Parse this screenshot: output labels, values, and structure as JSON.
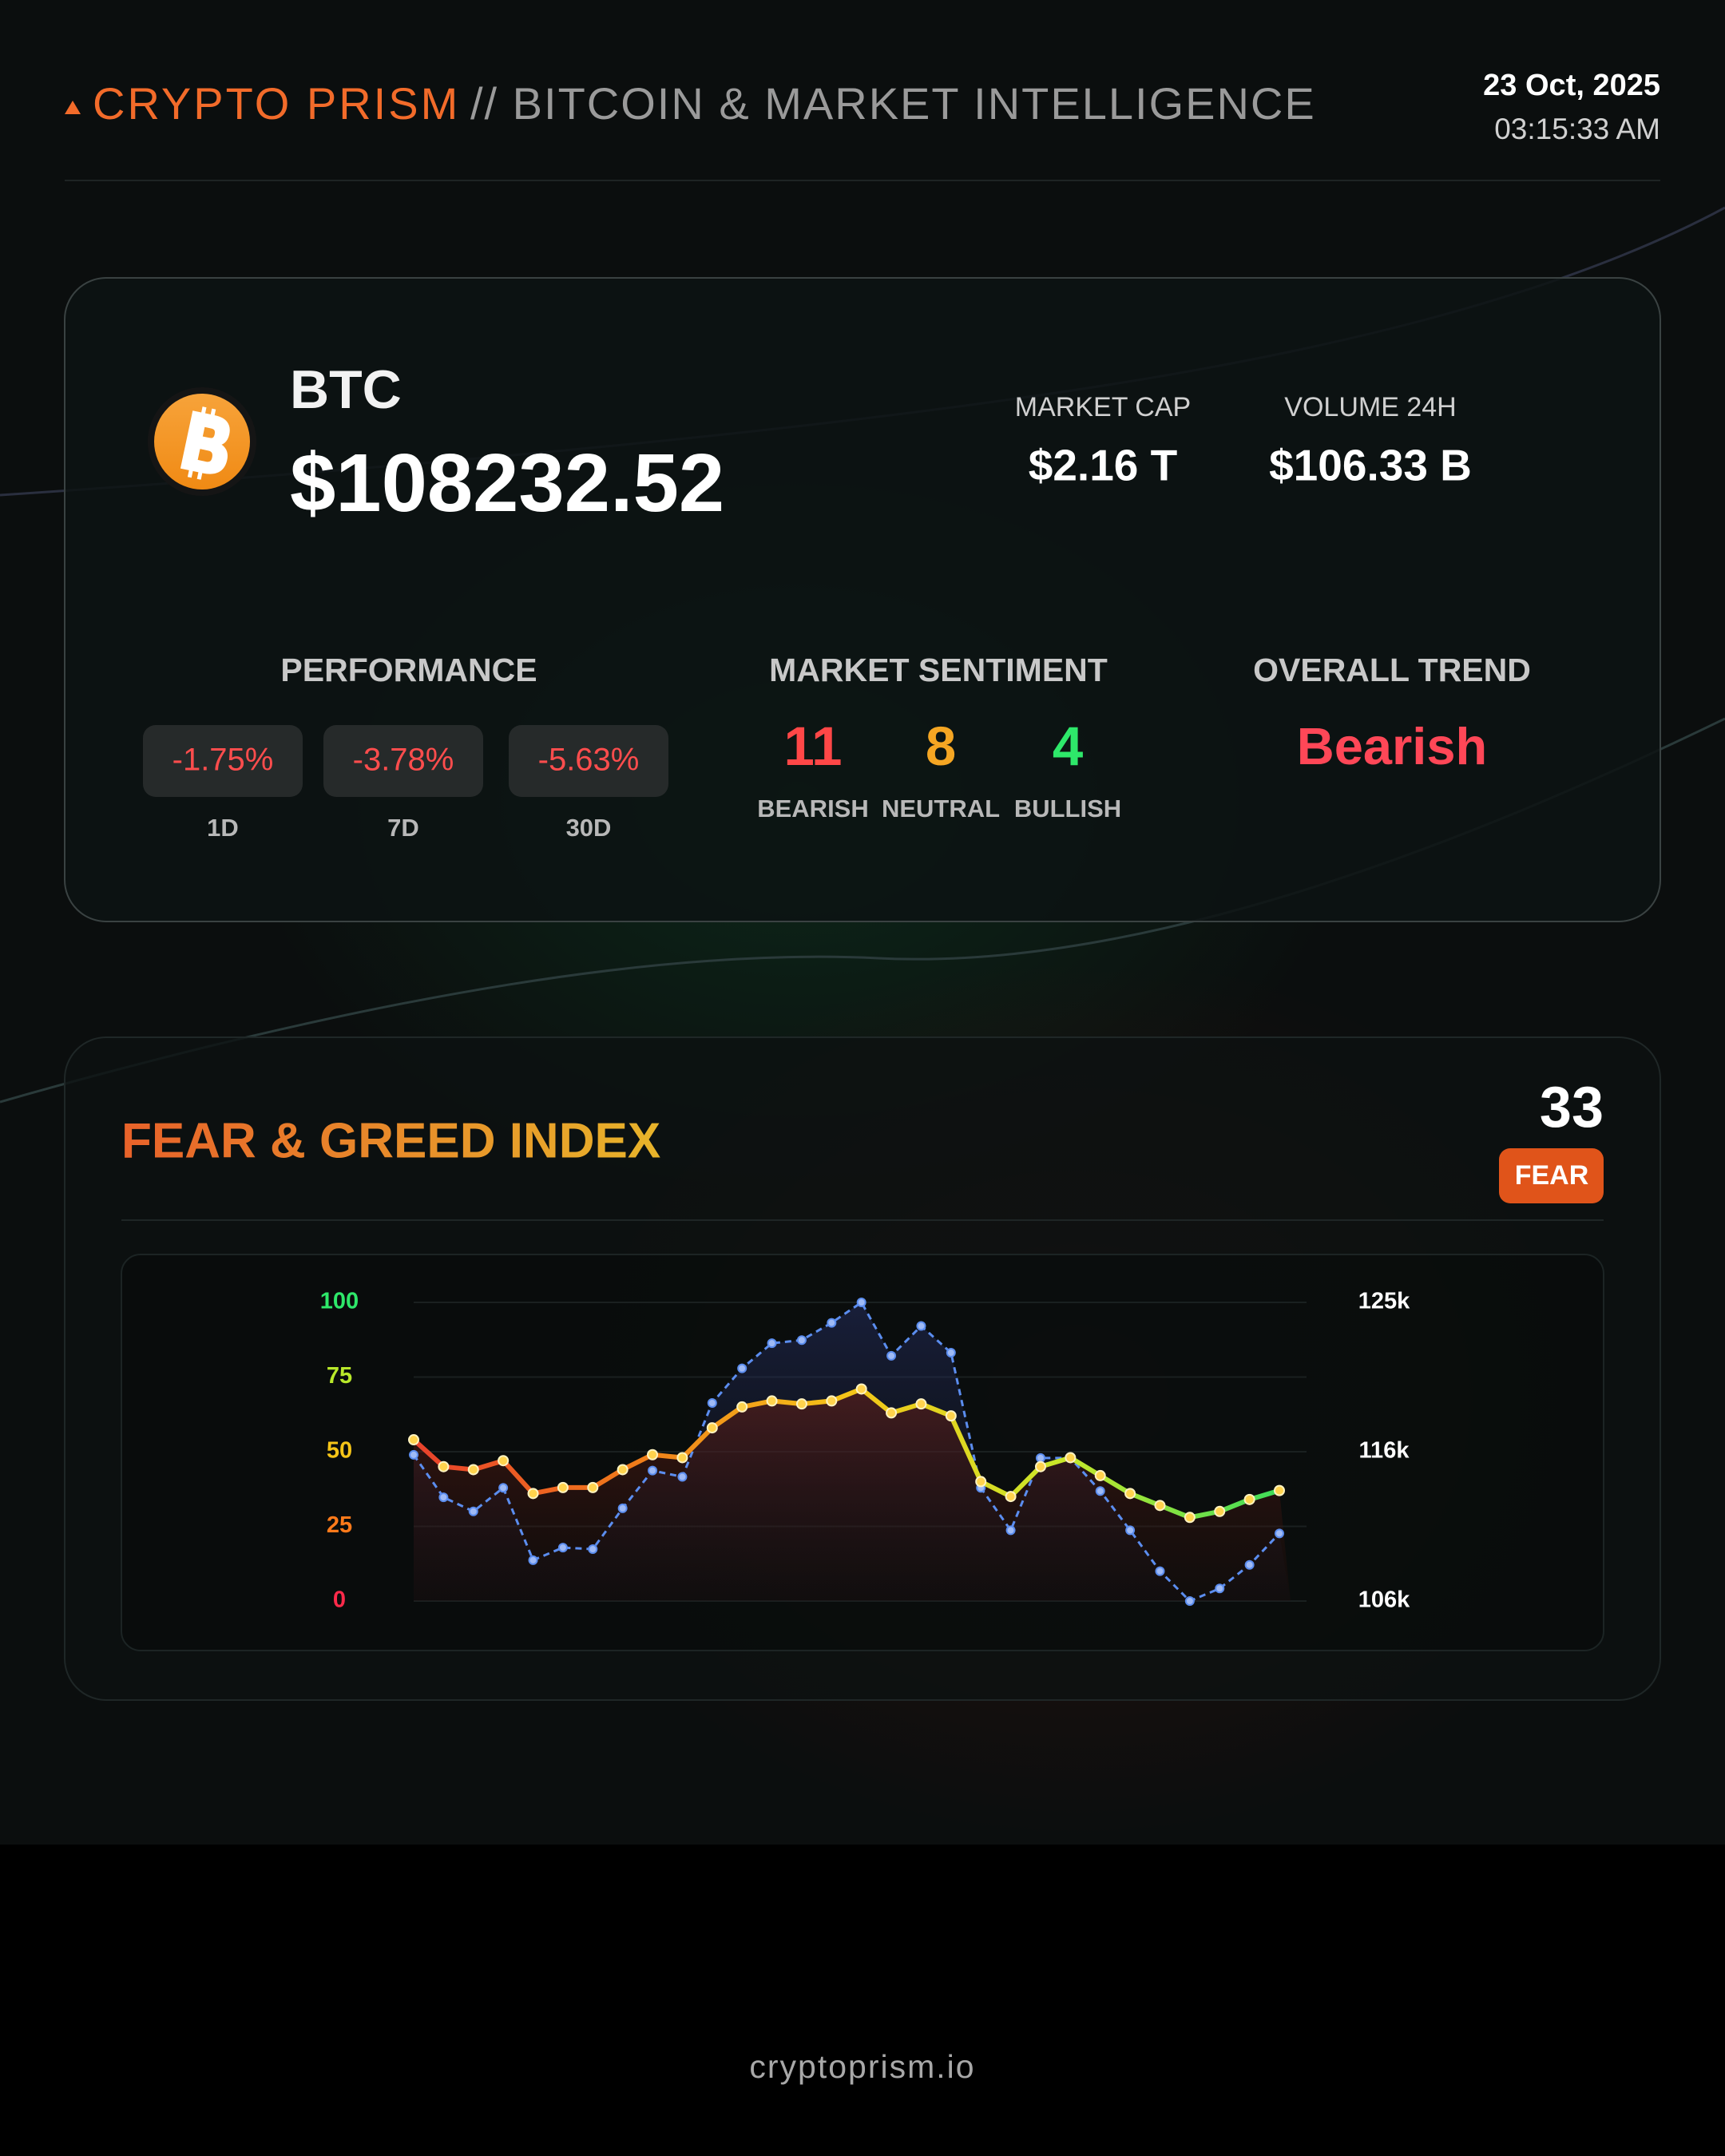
{
  "header": {
    "brand": "CRYPTO PRISM",
    "subtitle": "// BITCOIN & MARKET INTELLIGENCE",
    "date": "23 Oct, 2025",
    "time": "03:15:33 AM"
  },
  "coin": {
    "symbol": "BTC",
    "price": "$108232.52",
    "stats": [
      {
        "label": "MARKET CAP",
        "value": "$2.16 T"
      },
      {
        "label": "VOLUME 24H",
        "value": "$106.33 B"
      }
    ]
  },
  "performance": {
    "title": "PERFORMANCE",
    "items": [
      {
        "value": "-1.75%",
        "period": "1D"
      },
      {
        "value": "-3.78%",
        "period": "7D"
      },
      {
        "value": "-5.63%",
        "period": "30D"
      }
    ]
  },
  "sentiment": {
    "title": "MARKET SENTIMENT",
    "items": [
      {
        "count": "11",
        "label": "BEARISH",
        "color": "#ff4747"
      },
      {
        "count": "8",
        "label": "NEUTRAL",
        "color": "#f5a623"
      },
      {
        "count": "4",
        "label": "BULLISH",
        "color": "#2ee86a"
      }
    ]
  },
  "trend": {
    "title": "OVERALL TREND",
    "value": "Bearish",
    "color": "#ff4757"
  },
  "fear_greed": {
    "title": "FEAR & GREED INDEX",
    "value": "33",
    "label": "FEAR"
  },
  "chart_data": {
    "type": "line",
    "categories": [
      null,
      null,
      null,
      null,
      null,
      null,
      null,
      null,
      null,
      null,
      null,
      null,
      null,
      null,
      null,
      null,
      null,
      null,
      null,
      null,
      null,
      null,
      null,
      null,
      null,
      null,
      null,
      null,
      null,
      null
    ],
    "series": [
      {
        "color": "#f5a623",
        "gradient": [
          "#e8412c",
          "#f07a1a",
          "#f5c518",
          "#c9e82a",
          "#3ddc5a"
        ],
        "values": [
          54,
          45,
          44,
          47,
          36,
          38,
          38,
          44,
          49,
          48,
          58,
          65,
          67,
          66,
          67,
          71,
          63,
          66,
          62,
          40,
          35,
          45,
          48,
          42,
          36,
          32,
          28,
          30,
          34,
          37
        ]
      },
      {
        "color": "#5b8def",
        "axis": "y2",
        "values": [
          115300,
          112600,
          111700,
          113200,
          108600,
          109400,
          109300,
          111900,
          114300,
          113900,
          118600,
          120800,
          122400,
          122600,
          123700,
          125000,
          121600,
          123500,
          121800,
          113200,
          110500,
          115100,
          115100,
          113000,
          110500,
          107900,
          106000,
          106800,
          108300,
          110300
        ]
      }
    ],
    "ylim": [
      0,
      100
    ],
    "yticks": [
      0,
      25,
      50,
      75,
      100
    ],
    "ytick_colors": [
      "#ff2a4a",
      "#ff7a1a",
      "#f5c518",
      "#b8e82a",
      "#2ee86a"
    ],
    "y2lim": [
      106000,
      125000
    ],
    "y2ticks": [
      {
        "value": 106000,
        "label": "106k"
      },
      {
        "value": 115500,
        "label": "116k"
      },
      {
        "value": 125000,
        "label": "125k"
      }
    ],
    "grid": true
  },
  "footer": "cryptoprism.io"
}
